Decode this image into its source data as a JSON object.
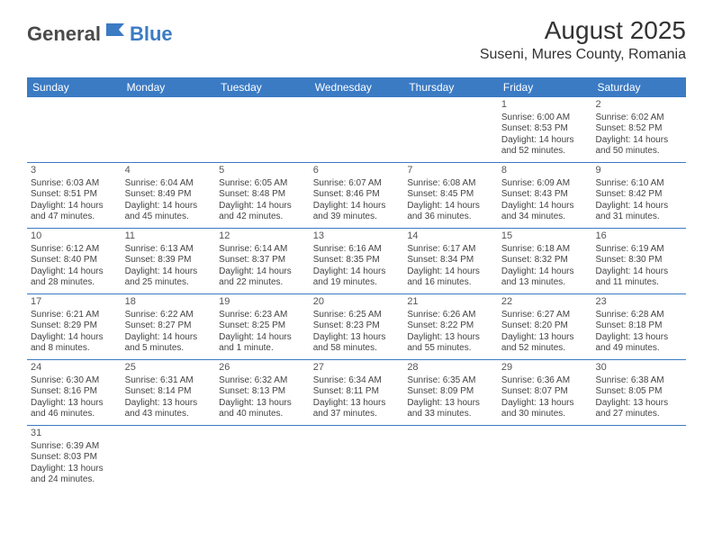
{
  "logo": {
    "part1": "General",
    "part2": "Blue"
  },
  "title": "August 2025",
  "location": "Suseni, Mures County, Romania",
  "colors": {
    "header_bg": "#3b7bc4",
    "header_text": "#ffffff",
    "border": "#3b7bc4",
    "body_text": "#444444",
    "title_text": "#333333"
  },
  "day_names": [
    "Sunday",
    "Monday",
    "Tuesday",
    "Wednesday",
    "Thursday",
    "Friday",
    "Saturday"
  ],
  "weeks": [
    [
      null,
      null,
      null,
      null,
      null,
      {
        "n": "1",
        "sr": "6:00 AM",
        "ss": "8:53 PM",
        "dl": "14 hours and 52 minutes."
      },
      {
        "n": "2",
        "sr": "6:02 AM",
        "ss": "8:52 PM",
        "dl": "14 hours and 50 minutes."
      }
    ],
    [
      {
        "n": "3",
        "sr": "6:03 AM",
        "ss": "8:51 PM",
        "dl": "14 hours and 47 minutes."
      },
      {
        "n": "4",
        "sr": "6:04 AM",
        "ss": "8:49 PM",
        "dl": "14 hours and 45 minutes."
      },
      {
        "n": "5",
        "sr": "6:05 AM",
        "ss": "8:48 PM",
        "dl": "14 hours and 42 minutes."
      },
      {
        "n": "6",
        "sr": "6:07 AM",
        "ss": "8:46 PM",
        "dl": "14 hours and 39 minutes."
      },
      {
        "n": "7",
        "sr": "6:08 AM",
        "ss": "8:45 PM",
        "dl": "14 hours and 36 minutes."
      },
      {
        "n": "8",
        "sr": "6:09 AM",
        "ss": "8:43 PM",
        "dl": "14 hours and 34 minutes."
      },
      {
        "n": "9",
        "sr": "6:10 AM",
        "ss": "8:42 PM",
        "dl": "14 hours and 31 minutes."
      }
    ],
    [
      {
        "n": "10",
        "sr": "6:12 AM",
        "ss": "8:40 PM",
        "dl": "14 hours and 28 minutes."
      },
      {
        "n": "11",
        "sr": "6:13 AM",
        "ss": "8:39 PM",
        "dl": "14 hours and 25 minutes."
      },
      {
        "n": "12",
        "sr": "6:14 AM",
        "ss": "8:37 PM",
        "dl": "14 hours and 22 minutes."
      },
      {
        "n": "13",
        "sr": "6:16 AM",
        "ss": "8:35 PM",
        "dl": "14 hours and 19 minutes."
      },
      {
        "n": "14",
        "sr": "6:17 AM",
        "ss": "8:34 PM",
        "dl": "14 hours and 16 minutes."
      },
      {
        "n": "15",
        "sr": "6:18 AM",
        "ss": "8:32 PM",
        "dl": "14 hours and 13 minutes."
      },
      {
        "n": "16",
        "sr": "6:19 AM",
        "ss": "8:30 PM",
        "dl": "14 hours and 11 minutes."
      }
    ],
    [
      {
        "n": "17",
        "sr": "6:21 AM",
        "ss": "8:29 PM",
        "dl": "14 hours and 8 minutes."
      },
      {
        "n": "18",
        "sr": "6:22 AM",
        "ss": "8:27 PM",
        "dl": "14 hours and 5 minutes."
      },
      {
        "n": "19",
        "sr": "6:23 AM",
        "ss": "8:25 PM",
        "dl": "14 hours and 1 minute."
      },
      {
        "n": "20",
        "sr": "6:25 AM",
        "ss": "8:23 PM",
        "dl": "13 hours and 58 minutes."
      },
      {
        "n": "21",
        "sr": "6:26 AM",
        "ss": "8:22 PM",
        "dl": "13 hours and 55 minutes."
      },
      {
        "n": "22",
        "sr": "6:27 AM",
        "ss": "8:20 PM",
        "dl": "13 hours and 52 minutes."
      },
      {
        "n": "23",
        "sr": "6:28 AM",
        "ss": "8:18 PM",
        "dl": "13 hours and 49 minutes."
      }
    ],
    [
      {
        "n": "24",
        "sr": "6:30 AM",
        "ss": "8:16 PM",
        "dl": "13 hours and 46 minutes."
      },
      {
        "n": "25",
        "sr": "6:31 AM",
        "ss": "8:14 PM",
        "dl": "13 hours and 43 minutes."
      },
      {
        "n": "26",
        "sr": "6:32 AM",
        "ss": "8:13 PM",
        "dl": "13 hours and 40 minutes."
      },
      {
        "n": "27",
        "sr": "6:34 AM",
        "ss": "8:11 PM",
        "dl": "13 hours and 37 minutes."
      },
      {
        "n": "28",
        "sr": "6:35 AM",
        "ss": "8:09 PM",
        "dl": "13 hours and 33 minutes."
      },
      {
        "n": "29",
        "sr": "6:36 AM",
        "ss": "8:07 PM",
        "dl": "13 hours and 30 minutes."
      },
      {
        "n": "30",
        "sr": "6:38 AM",
        "ss": "8:05 PM",
        "dl": "13 hours and 27 minutes."
      }
    ],
    [
      {
        "n": "31",
        "sr": "6:39 AM",
        "ss": "8:03 PM",
        "dl": "13 hours and 24 minutes."
      },
      null,
      null,
      null,
      null,
      null,
      null
    ]
  ],
  "labels": {
    "sunrise": "Sunrise:",
    "sunset": "Sunset:",
    "daylight": "Daylight:"
  }
}
